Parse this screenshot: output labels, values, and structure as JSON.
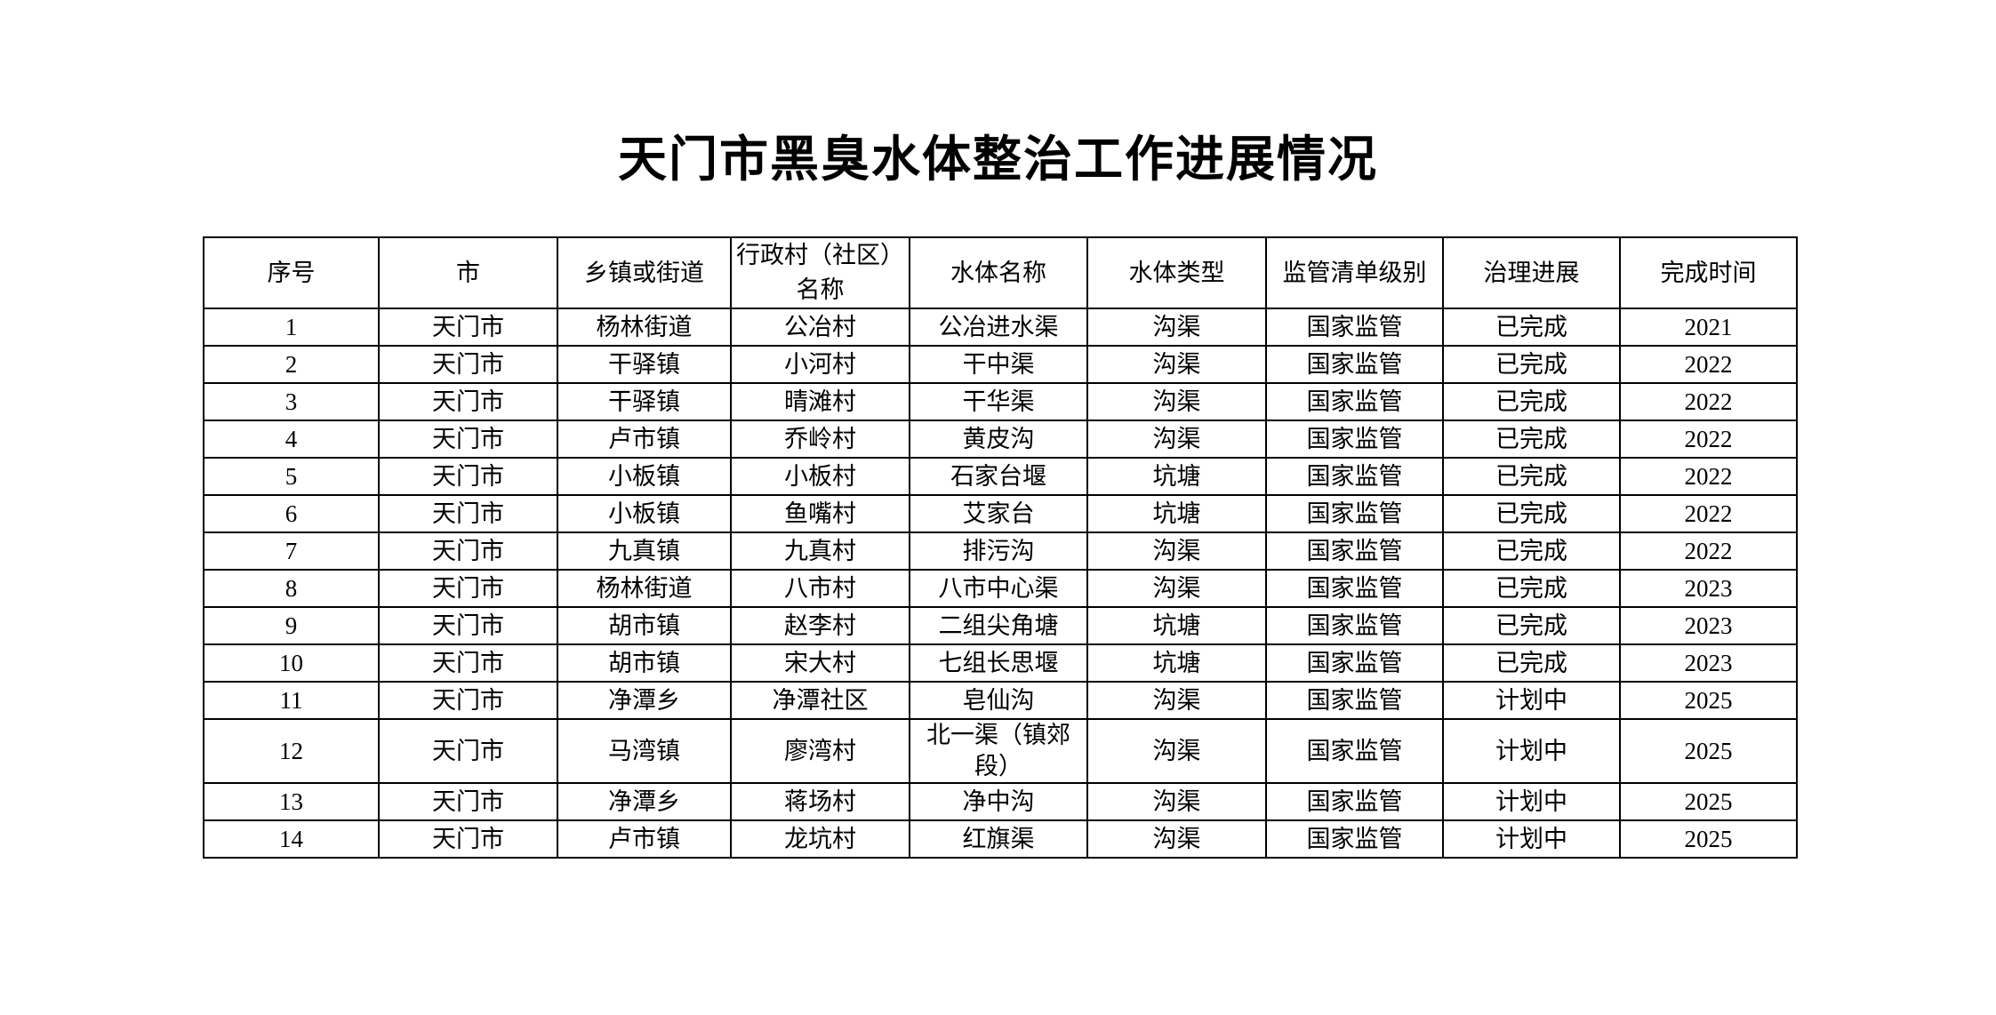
{
  "title": "天门市黑臭水体整治工作进展情况",
  "colors": {
    "background": "#ffffff",
    "text": "#000000",
    "table_border": "#000000"
  },
  "table": {
    "headers": [
      "序号",
      "市",
      "乡镇或街道",
      "行政村（社区）名称",
      "水体名称",
      "水体类型",
      "监管清单级别",
      "治理进展",
      "完成时间"
    ],
    "rows": [
      [
        "1",
        "天门市",
        "杨林街道",
        "公冶村",
        "公冶进水渠",
        "沟渠",
        "国家监管",
        "已完成",
        "2021"
      ],
      [
        "2",
        "天门市",
        "干驿镇",
        "小河村",
        "干中渠",
        "沟渠",
        "国家监管",
        "已完成",
        "2022"
      ],
      [
        "3",
        "天门市",
        "干驿镇",
        "晴滩村",
        "干华渠",
        "沟渠",
        "国家监管",
        "已完成",
        "2022"
      ],
      [
        "4",
        "天门市",
        "卢市镇",
        "乔岭村",
        "黄皮沟",
        "沟渠",
        "国家监管",
        "已完成",
        "2022"
      ],
      [
        "5",
        "天门市",
        "小板镇",
        "小板村",
        "石家台堰",
        "坑塘",
        "国家监管",
        "已完成",
        "2022"
      ],
      [
        "6",
        "天门市",
        "小板镇",
        "鱼嘴村",
        "艾家台",
        "坑塘",
        "国家监管",
        "已完成",
        "2022"
      ],
      [
        "7",
        "天门市",
        "九真镇",
        "九真村",
        "排污沟",
        "沟渠",
        "国家监管",
        "已完成",
        "2022"
      ],
      [
        "8",
        "天门市",
        "杨林街道",
        "八市村",
        "八市中心渠",
        "沟渠",
        "国家监管",
        "已完成",
        "2023"
      ],
      [
        "9",
        "天门市",
        "胡市镇",
        "赵李村",
        "二组尖角塘",
        "坑塘",
        "国家监管",
        "已完成",
        "2023"
      ],
      [
        "10",
        "天门市",
        "胡市镇",
        "宋大村",
        "七组长思堰",
        "坑塘",
        "国家监管",
        "已完成",
        "2023"
      ],
      [
        "11",
        "天门市",
        "净潭乡",
        "净潭社区",
        "皂仙沟",
        "沟渠",
        "国家监管",
        "计划中",
        "2025"
      ],
      [
        "12",
        "天门市",
        "马湾镇",
        "廖湾村",
        "北一渠（镇郊段）",
        "沟渠",
        "国家监管",
        "计划中",
        "2025"
      ],
      [
        "13",
        "天门市",
        "净潭乡",
        "蒋场村",
        "净中沟",
        "沟渠",
        "国家监管",
        "计划中",
        "2025"
      ],
      [
        "14",
        "天门市",
        "卢市镇",
        "龙坑村",
        "红旗渠",
        "沟渠",
        "国家监管",
        "计划中",
        "2025"
      ]
    ]
  }
}
